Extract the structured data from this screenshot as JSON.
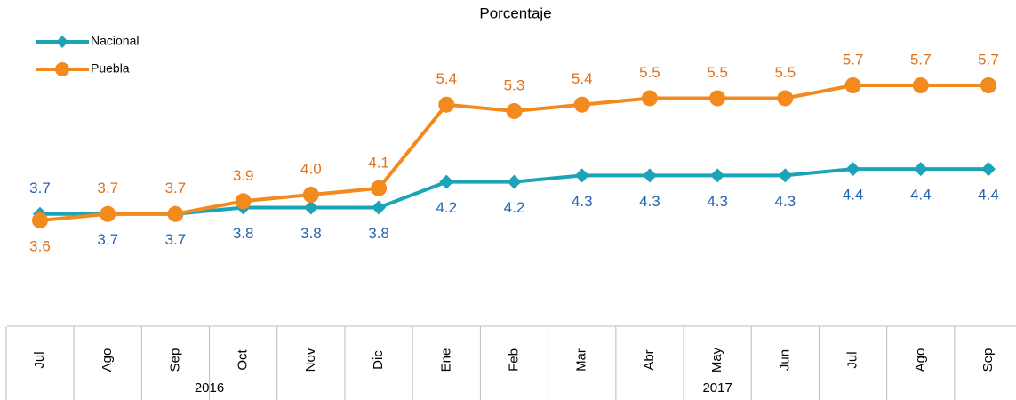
{
  "chart_data": {
    "type": "line",
    "title": "Porcentaje",
    "groups": [
      {
        "name": "2016",
        "categories": [
          "Jul",
          "Ago",
          "Sep",
          "Oct",
          "Nov",
          "Dic"
        ]
      },
      {
        "name": "2017",
        "categories": [
          "Ene",
          "Feb",
          "Mar",
          "Abr",
          "May",
          "Jun",
          "Jul",
          "Ago",
          "Sep"
        ]
      }
    ],
    "series": [
      {
        "name": "Nacional",
        "color": "#1ba3b8",
        "label_color": "#2563b0",
        "values": [
          3.7,
          3.7,
          3.7,
          3.8,
          3.8,
          3.8,
          4.2,
          4.2,
          4.3,
          4.3,
          4.3,
          4.3,
          4.4,
          4.4,
          4.4
        ],
        "value_labels": [
          "3.7",
          "3.7",
          "3.7",
          "3.8",
          "3.8",
          "3.8",
          "4.2",
          "4.2",
          "4.3",
          "4.3",
          "4.3",
          "4.3",
          "4.4",
          "4.4",
          "4.4"
        ]
      },
      {
        "name": "Puebla",
        "color": "#f28a1e",
        "label_color": "#e0701a",
        "values": [
          3.6,
          3.7,
          3.7,
          3.9,
          4.0,
          4.1,
          5.4,
          5.3,
          5.4,
          5.5,
          5.5,
          5.5,
          5.7,
          5.7,
          5.7
        ],
        "value_labels": [
          "3.6",
          "3.7",
          "3.7",
          "3.9",
          "4.0",
          "4.1",
          "5.4",
          "5.3",
          "5.4",
          "5.5",
          "5.5",
          "5.5",
          "5.7",
          "5.7",
          "5.7"
        ]
      }
    ],
    "legend": "top-left"
  }
}
